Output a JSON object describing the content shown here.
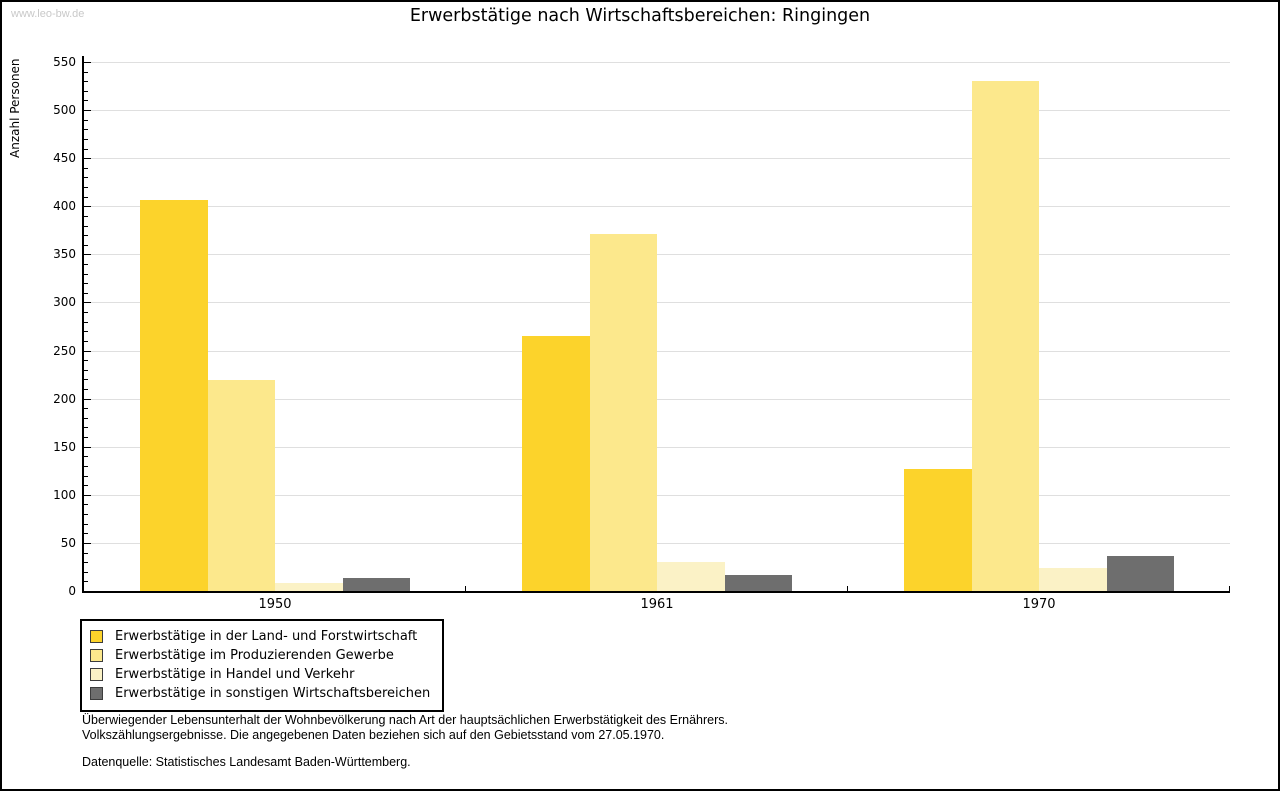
{
  "watermark": "www.leo-bw.de",
  "title": "Erwerbstätige nach Wirtschaftsbereichen: Ringingen",
  "chart_data": {
    "type": "bar",
    "title": "Erwerbstätige nach Wirtschaftsbereichen: Ringingen",
    "xlabel": "",
    "ylabel": "Anzahl Personen",
    "ylim": [
      0,
      550
    ],
    "ytick_step": 50,
    "ytick_minor_step": 10,
    "grid": true,
    "legend_position": "bottom-left",
    "categories": [
      "1950",
      "1961",
      "1970"
    ],
    "series": [
      {
        "name": "Erwerbstätige in der Land- und Forstwirtschaft",
        "color": "#fcd32b",
        "values": [
          407,
          265,
          127
        ]
      },
      {
        "name": "Erwerbstätige im Produzierenden Gewerbe",
        "color": "#fce88c",
        "values": [
          219,
          371,
          530
        ]
      },
      {
        "name": "Erwerbstätige in Handel und Verkehr",
        "color": "#fbf2c6",
        "values": [
          8,
          30,
          24
        ]
      },
      {
        "name": "Erwerbstätige in sonstigen Wirtschaftsbereichen",
        "color": "#6e6e6e",
        "values": [
          13,
          17,
          36
        ]
      }
    ]
  },
  "footnotes": {
    "line1": "Überwiegender Lebensunterhalt der Wohnbevölkerung nach Art der hauptsächlichen Erwerbstätigkeit des Ernährers.",
    "line2": "Volkszählungsergebnisse. Die angegebenen Daten beziehen sich auf den Gebietsstand vom 27.05.1970.",
    "source": "Datenquelle: Statistisches Landesamt Baden-Württemberg."
  },
  "colors": {
    "background": "#ffffff",
    "axis": "#000000",
    "gridline": "#dfdfdf",
    "watermark": "#c9c9c9",
    "text": "#000000"
  }
}
